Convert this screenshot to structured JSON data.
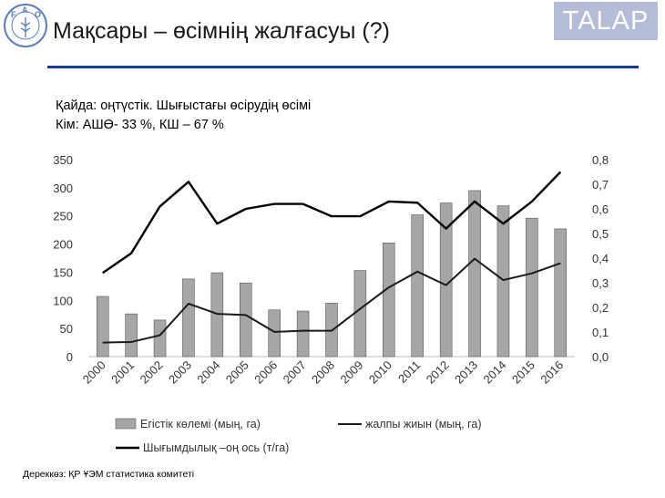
{
  "header": {
    "title": "Мақсары – өсімнің жалғасуы (?)",
    "brand": "TALAP",
    "logo_text": "FAO · FIAT PANIS"
  },
  "subtitle": {
    "line1": "Қайда:  оңтүстік. Шығыстағы өсірудің өсімі",
    "line2": "Кім: АШӨ- 33 %, КШ – 67 %"
  },
  "source": "Дереккөз: ҚР ҰЭМ статистика комитеті",
  "colors": {
    "accent_rule": "#1f3a8a",
    "bars": "#a6a6a6",
    "bar_stroke": "#444444",
    "line_total": "#1a1a1a",
    "line_yield": "#000000",
    "brand_bg": "#b5bcd6"
  },
  "chart_data": {
    "type": "bar",
    "categories": [
      "2000",
      "2001",
      "2002",
      "2003",
      "2004",
      "2005",
      "2006",
      "2007",
      "2008",
      "2009",
      "2010",
      "2011",
      "2012",
      "2013",
      "2014",
      "2015",
      "2016"
    ],
    "series": [
      {
        "name": "Егістік көлемі (мың, га)",
        "type": "bar",
        "axis": "left",
        "values": [
          107,
          76,
          65,
          138,
          149,
          131,
          83,
          81,
          95,
          153,
          202,
          252,
          273,
          295,
          268,
          246,
          227
        ]
      },
      {
        "name": "жалпы жиын (мың, га)",
        "type": "line",
        "axis": "left",
        "values": [
          25,
          26,
          38,
          94,
          76,
          74,
          44,
          46,
          46,
          85,
          123,
          151,
          127,
          174,
          136,
          148,
          166
        ]
      },
      {
        "name": "Шығымдылық –оң ось (т/га)",
        "type": "line",
        "axis": "right",
        "values": [
          0.34,
          0.42,
          0.61,
          0.71,
          0.54,
          0.6,
          0.62,
          0.62,
          0.57,
          0.57,
          0.63,
          0.625,
          0.52,
          0.63,
          0.54,
          0.63,
          0.75
        ]
      }
    ],
    "ylim": [
      0,
      350
    ],
    "y_ticks": [
      "0",
      "50",
      "100",
      "150",
      "200",
      "250",
      "300",
      "350"
    ],
    "y_tick_values": [
      0,
      50,
      100,
      150,
      200,
      250,
      300,
      350
    ],
    "y2lim": [
      0,
      0.8
    ],
    "y2_ticks": [
      "0,0",
      "0,1",
      "0,2",
      "0,3",
      "0,4",
      "0,5",
      "0,6",
      "0,7",
      "0,8"
    ],
    "y2_tick_values": [
      0,
      0.1,
      0.2,
      0.3,
      0.4,
      0.5,
      0.6,
      0.7,
      0.8
    ],
    "grid": false,
    "legend_position": "bottom"
  }
}
